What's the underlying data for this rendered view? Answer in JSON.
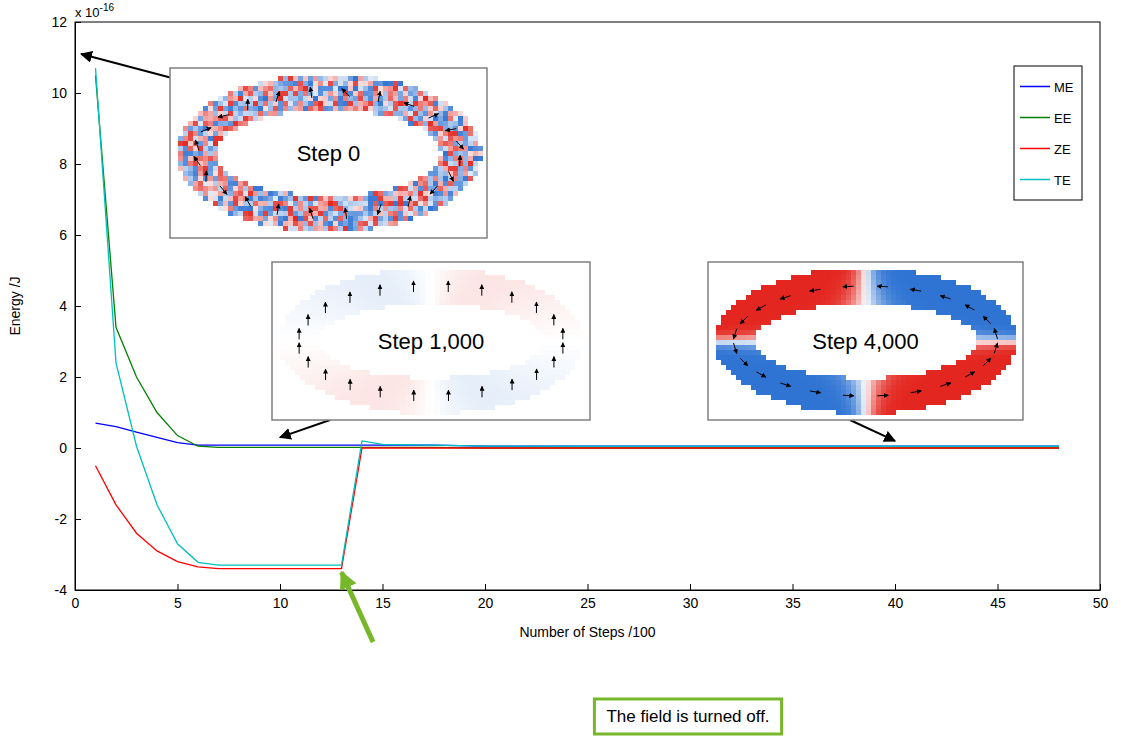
{
  "chart_data": {
    "type": "line",
    "x_label": "Number of Steps /100",
    "y_label": "Energy /J",
    "y_multiplier": {
      "text": "x 10",
      "exponent": "-16"
    },
    "x": [
      1,
      2,
      3,
      4,
      5,
      6,
      7,
      8,
      9,
      10,
      11,
      12,
      13,
      14,
      15,
      17.5,
      20,
      25,
      30,
      35,
      40,
      45,
      48
    ],
    "series": [
      {
        "name": "ME",
        "color": "#0000ff",
        "values": [
          0.7,
          0.6,
          0.45,
          0.3,
          0.15,
          0.08,
          0.08,
          0.08,
          0.08,
          0.08,
          0.08,
          0.08,
          0.08,
          0.08,
          0.08,
          0.08,
          0.05,
          0.05,
          0.05,
          0.05,
          0.05,
          0.05,
          0.05
        ]
      },
      {
        "name": "EE",
        "color": "#008000",
        "values": [
          10.5,
          3.4,
          2.0,
          1.0,
          0.35,
          0.05,
          0.02,
          0.02,
          0.02,
          0.02,
          0.02,
          0.02,
          0.02,
          0.02,
          0.02,
          0.02,
          0,
          0,
          0,
          0,
          0,
          0,
          0
        ]
      },
      {
        "name": "ZE",
        "color": "#ff0000",
        "values": [
          -0.5,
          -1.6,
          -2.4,
          -2.9,
          -3.2,
          -3.35,
          -3.4,
          -3.4,
          -3.4,
          -3.4,
          -3.4,
          -3.4,
          -3.4,
          0,
          0,
          0,
          0,
          0,
          0,
          0,
          0,
          0,
          0
        ]
      },
      {
        "name": "TE",
        "color": "#00bfbf",
        "values": [
          10.7,
          2.4,
          0.05,
          -1.6,
          -2.7,
          -3.22,
          -3.3,
          -3.3,
          -3.3,
          -3.3,
          -3.3,
          -3.3,
          -3.3,
          0.2,
          0.1,
          0.08,
          0.05,
          0.05,
          0.05,
          0.05,
          0.05,
          0.05,
          0.05
        ]
      }
    ],
    "xlim": [
      0,
      50
    ],
    "ylim": [
      -4,
      12
    ],
    "xticks": [
      0,
      5,
      10,
      15,
      20,
      25,
      30,
      35,
      40,
      45,
      50
    ],
    "yticks": [
      -4,
      -2,
      0,
      2,
      4,
      6,
      8,
      10,
      12
    ],
    "grid": false,
    "legend": "top-right",
    "annotations": [
      {
        "text": "Step 0",
        "x": 0.3,
        "y": 11.1
      },
      {
        "text": "Step 1,000",
        "x": 10,
        "y": 0.3
      },
      {
        "text": "Step 4,000",
        "x": 40,
        "y": 0.2
      },
      {
        "text": "The field is turned off.",
        "x": 13,
        "y": -3.5
      }
    ]
  }
}
